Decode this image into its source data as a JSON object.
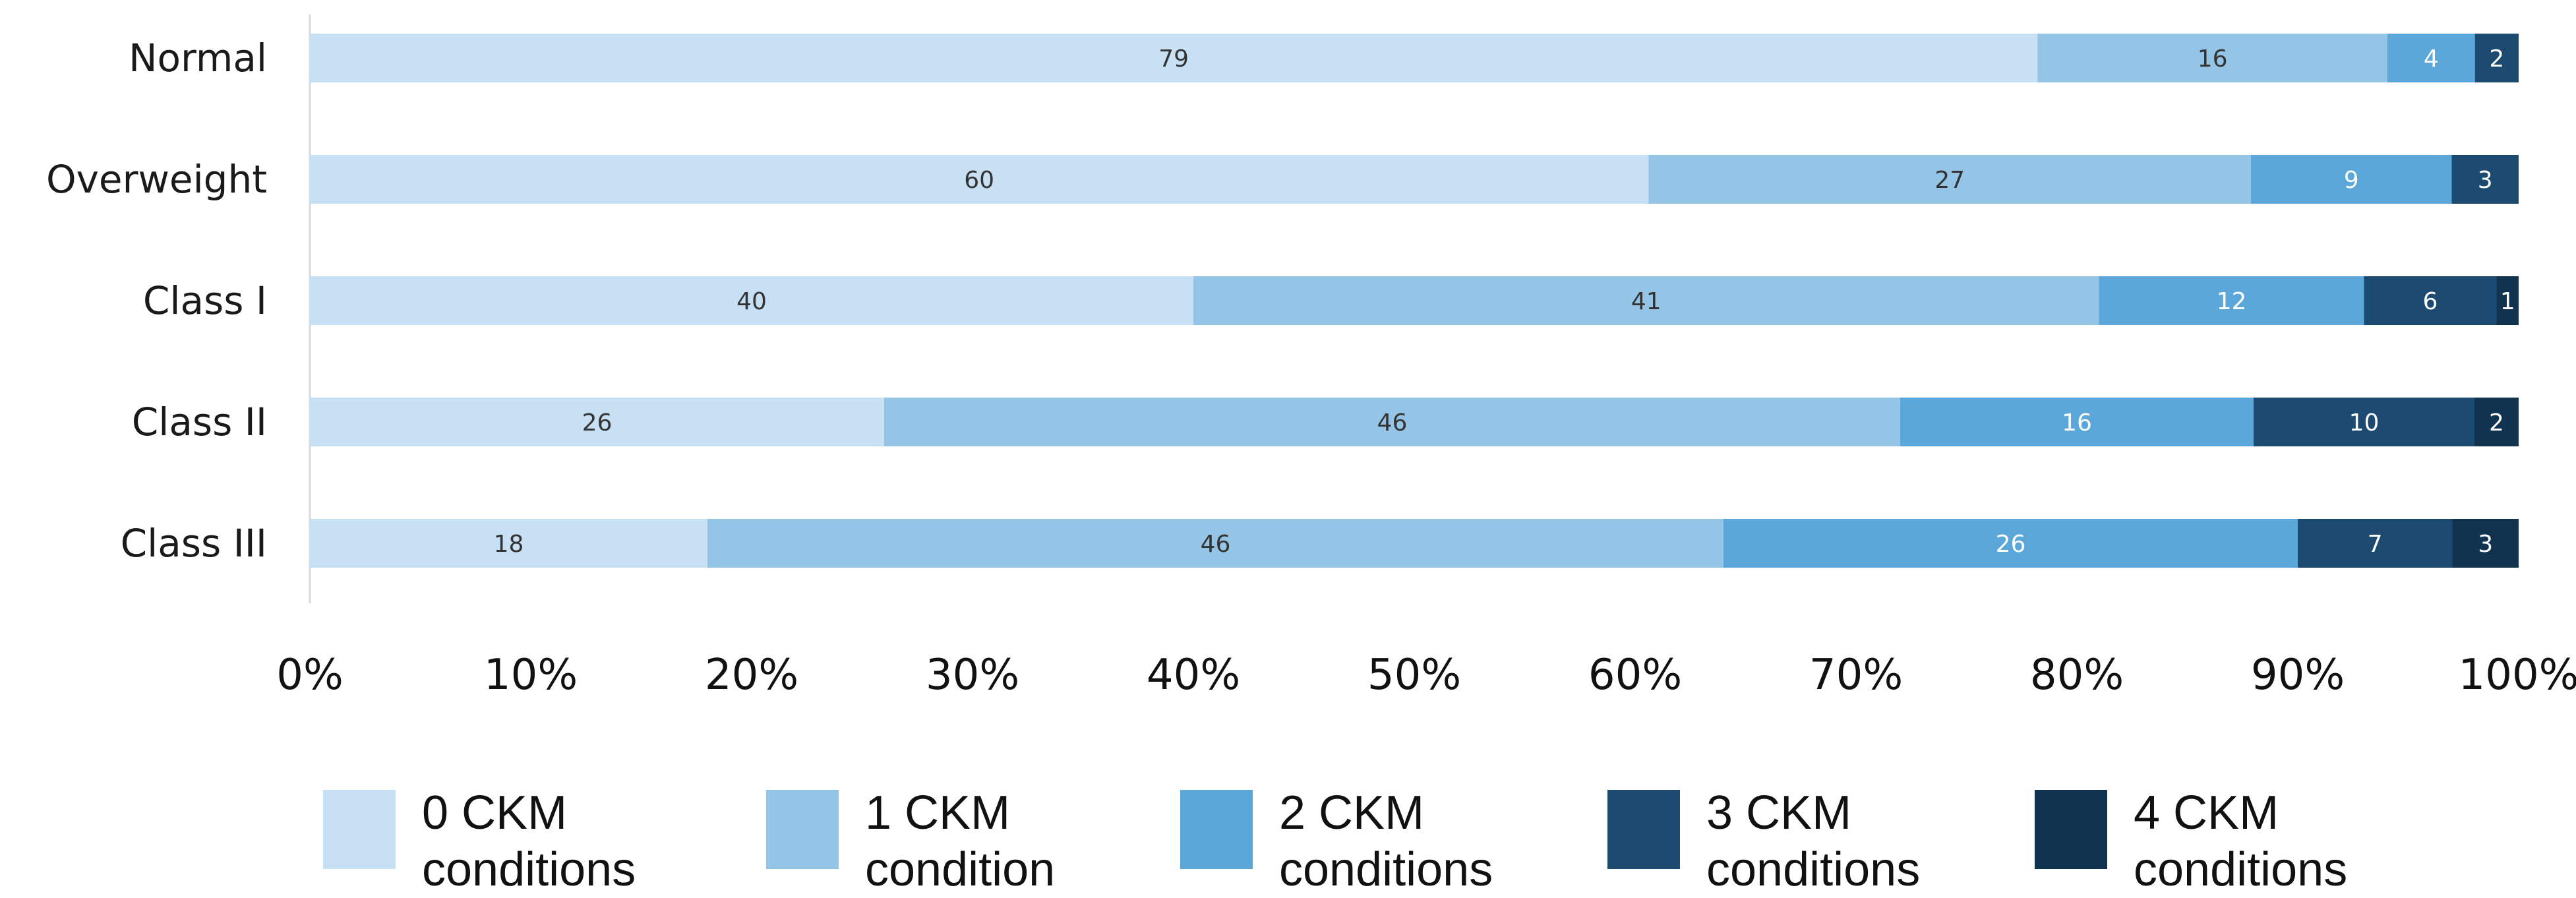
{
  "chart_data": {
    "type": "bar",
    "orientation": "horizontal",
    "stacked": true,
    "percent_stacked": true,
    "categories": [
      "Normal",
      "Overweight",
      "Class I",
      "Class II",
      "Class III"
    ],
    "series": [
      {
        "name": "0 CKM conditions",
        "name_lines": [
          "0 CKM",
          "conditions"
        ],
        "color": "#c8e0f4",
        "label_color": "#333333",
        "values": [
          79,
          60,
          40,
          26,
          18
        ]
      },
      {
        "name": "1 CKM condition",
        "name_lines": [
          "1 CKM",
          "condition"
        ],
        "color": "#94c5e7",
        "label_color": "#333333",
        "values": [
          16,
          27,
          41,
          46,
          46
        ]
      },
      {
        "name": "2 CKM conditions",
        "name_lines": [
          "2 CKM",
          "conditions"
        ],
        "color": "#5ca7da",
        "label_color": "#ffffff",
        "values": [
          4,
          9,
          12,
          16,
          26
        ]
      },
      {
        "name": "3 CKM conditions",
        "name_lines": [
          "3 CKM",
          "conditions"
        ],
        "color": "#1c4a70",
        "label_color": "#ffffff",
        "values": [
          2,
          3,
          6,
          10,
          7
        ]
      },
      {
        "name": "4 CKM conditions",
        "name_lines": [
          "4 CKM",
          "conditions"
        ],
        "color": "#12334f",
        "label_color": "#ffffff",
        "values": [
          0,
          0,
          1,
          2,
          3
        ]
      }
    ],
    "x_ticks": [
      "0%",
      "10%",
      "20%",
      "30%",
      "40%",
      "50%",
      "60%",
      "70%",
      "80%",
      "90%",
      "100%"
    ],
    "xlim": [
      0,
      100
    ],
    "legend_position": "bottom",
    "grid": false
  }
}
